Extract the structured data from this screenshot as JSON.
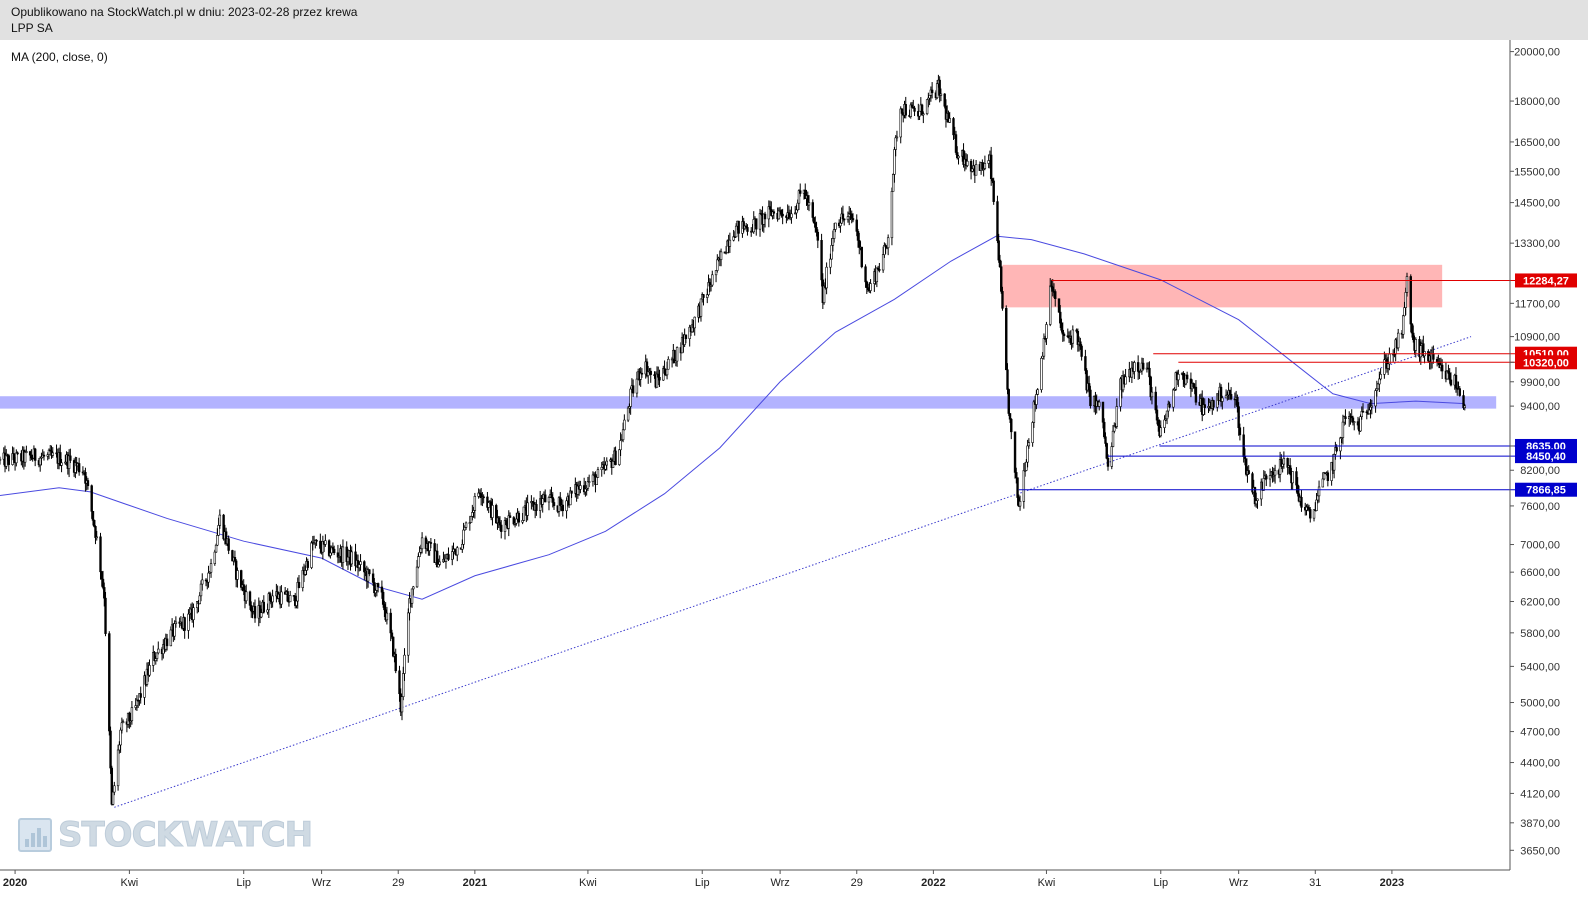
{
  "header": {
    "line1": "Opublikowano na StockWatch.pl w dniu: 2023-02-28 przez krewa",
    "line2": "LPP SA"
  },
  "indicator": {
    "label": "MA (200, close, 0)"
  },
  "watermark": {
    "text": "STOCKWATCH",
    "icon": "bar-chart-logo-icon"
  },
  "colors": {
    "candle": "#000000",
    "ma": "#4a4ae0",
    "support_band": "#b3b3ff",
    "resistance_band": "#ffb6b6",
    "red_level": "#e00000",
    "blue_level": "#0000cc",
    "trendline": "#3a3acc"
  },
  "chart_data": {
    "type": "candlestick",
    "title": "LPP SA",
    "y_scale": "log",
    "ylim": [
      3500,
      20500
    ],
    "y_ticks": [
      20000,
      18000,
      16500,
      15500,
      14500,
      13300,
      11700,
      10900,
      10320,
      9900,
      9400,
      8635,
      8200,
      7600,
      7000,
      6600,
      6200,
      5800,
      5400,
      5000,
      4700,
      4400,
      4120,
      3870,
      3650
    ],
    "y_tick_labels": [
      "20000,00",
      "18000,00",
      "16500,00",
      "15500,00",
      "14500,00",
      "13300,00",
      "11700,00",
      "10900,00",
      "",
      "9900,00",
      "9400,00",
      "",
      "8200,00",
      "7600,00",
      "7000,00",
      "6600,00",
      "6200,00",
      "5800,00",
      "5400,00",
      "5000,00",
      "4700,00",
      "4400,00",
      "4120,00",
      "3870,00",
      "3650,00"
    ],
    "x_ticks": [
      {
        "date": "2020-01-01",
        "label": "2020",
        "bold": true
      },
      {
        "date": "2020-04-01",
        "label": "Kwi"
      },
      {
        "date": "2020-07-01",
        "label": "Lip"
      },
      {
        "date": "2020-09-01",
        "label": "Wrz"
      },
      {
        "date": "2020-11-01",
        "label": "29"
      },
      {
        "date": "2021-01-01",
        "label": "2021",
        "bold": true
      },
      {
        "date": "2021-04-01",
        "label": "Kwi"
      },
      {
        "date": "2021-07-01",
        "label": "Lip"
      },
      {
        "date": "2021-09-01",
        "label": "Wrz"
      },
      {
        "date": "2021-11-01",
        "label": "29"
      },
      {
        "date": "2022-01-01",
        "label": "2022",
        "bold": true
      },
      {
        "date": "2022-04-01",
        "label": "Kwi"
      },
      {
        "date": "2022-07-01",
        "label": "Lip"
      },
      {
        "date": "2022-09-01",
        "label": "Wrz"
      },
      {
        "date": "2022-11-01",
        "label": "31"
      },
      {
        "date": "2023-01-01",
        "label": "2023",
        "bold": true
      }
    ],
    "x_range": [
      "2019-12-20",
      "2023-04-05"
    ],
    "price_path": [
      [
        "2019-12-20",
        8350
      ],
      [
        "2020-01-15",
        8450
      ],
      [
        "2020-02-10",
        8400
      ],
      [
        "2020-02-25",
        8200
      ],
      [
        "2020-03-05",
        7200
      ],
      [
        "2020-03-12",
        6300
      ],
      [
        "2020-03-18",
        4000
      ],
      [
        "2020-03-25",
        4700
      ],
      [
        "2020-04-05",
        4900
      ],
      [
        "2020-04-20",
        5500
      ],
      [
        "2020-05-05",
        5800
      ],
      [
        "2020-05-20",
        6000
      ],
      [
        "2020-06-05",
        6700
      ],
      [
        "2020-06-12",
        7400
      ],
      [
        "2020-06-25",
        6600
      ],
      [
        "2020-07-10",
        6000
      ],
      [
        "2020-07-25",
        6300
      ],
      [
        "2020-08-10",
        6200
      ],
      [
        "2020-08-25",
        7000
      ],
      [
        "2020-09-10",
        6900
      ],
      [
        "2020-09-25",
        6800
      ],
      [
        "2020-10-10",
        6500
      ],
      [
        "2020-10-20",
        6200
      ],
      [
        "2020-10-28",
        5600
      ],
      [
        "2020-11-03",
        4950
      ],
      [
        "2020-11-10",
        6200
      ],
      [
        "2020-11-20",
        7100
      ],
      [
        "2020-12-05",
        6700
      ],
      [
        "2020-12-20",
        7000
      ],
      [
        "2021-01-05",
        7900
      ],
      [
        "2021-01-20",
        7300
      ],
      [
        "2021-02-10",
        7500
      ],
      [
        "2021-02-25",
        7700
      ],
      [
        "2021-03-10",
        7600
      ],
      [
        "2021-03-25",
        7900
      ],
      [
        "2021-04-10",
        8100
      ],
      [
        "2021-04-25",
        8500
      ],
      [
        "2021-05-05",
        9600
      ],
      [
        "2021-05-15",
        10300
      ],
      [
        "2021-05-25",
        9900
      ],
      [
        "2021-06-10",
        10500
      ],
      [
        "2021-06-25",
        11300
      ],
      [
        "2021-07-10",
        12400
      ],
      [
        "2021-07-25",
        13700
      ],
      [
        "2021-08-10",
        13800
      ],
      [
        "2021-08-25",
        14200
      ],
      [
        "2021-09-10",
        14200
      ],
      [
        "2021-09-20",
        14900
      ],
      [
        "2021-10-01",
        13400
      ],
      [
        "2021-10-05",
        11800
      ],
      [
        "2021-10-15",
        14000
      ],
      [
        "2021-10-30",
        14000
      ],
      [
        "2021-11-10",
        12000
      ],
      [
        "2021-11-25",
        13200
      ],
      [
        "2021-12-01",
        16000
      ],
      [
        "2021-12-05",
        17800
      ],
      [
        "2021-12-20",
        17500
      ],
      [
        "2022-01-05",
        18500
      ],
      [
        "2022-01-20",
        16200
      ],
      [
        "2022-02-05",
        15500
      ],
      [
        "2022-02-15",
        15800
      ],
      [
        "2022-02-22",
        13000
      ],
      [
        "2022-02-28",
        10000
      ],
      [
        "2022-03-05",
        8500
      ],
      [
        "2022-03-10",
        7600
      ],
      [
        "2022-03-18",
        8800
      ],
      [
        "2022-03-25",
        9800
      ],
      [
        "2022-04-05",
        12200
      ],
      [
        "2022-04-15",
        10800
      ],
      [
        "2022-04-25",
        11000
      ],
      [
        "2022-05-05",
        9600
      ],
      [
        "2022-05-15",
        9300
      ],
      [
        "2022-05-20",
        8200
      ],
      [
        "2022-05-30",
        9800
      ],
      [
        "2022-06-10",
        10300
      ],
      [
        "2022-06-20",
        10200
      ],
      [
        "2022-06-30",
        8800
      ],
      [
        "2022-07-10",
        9600
      ],
      [
        "2022-07-15",
        10200
      ],
      [
        "2022-07-25",
        9800
      ],
      [
        "2022-08-05",
        9300
      ],
      [
        "2022-08-20",
        9700
      ],
      [
        "2022-08-30",
        9500
      ],
      [
        "2022-09-05",
        8400
      ],
      [
        "2022-09-15",
        7700
      ],
      [
        "2022-09-25",
        8200
      ],
      [
        "2022-10-10",
        8300
      ],
      [
        "2022-10-20",
        7700
      ],
      [
        "2022-10-28",
        7400
      ],
      [
        "2022-11-05",
        7900
      ],
      [
        "2022-11-15",
        8300
      ],
      [
        "2022-11-25",
        9200
      ],
      [
        "2022-12-05",
        9000
      ],
      [
        "2022-12-15",
        9500
      ],
      [
        "2022-12-25",
        10200
      ],
      [
        "2023-01-05",
        10700
      ],
      [
        "2023-01-10",
        11200
      ],
      [
        "2023-01-13",
        12250
      ],
      [
        "2023-01-18",
        10700
      ],
      [
        "2023-01-28",
        10500
      ],
      [
        "2023-02-10",
        10100
      ],
      [
        "2023-02-20",
        9900
      ],
      [
        "2023-02-28",
        9450
      ]
    ],
    "ma200_path": [
      [
        "2019-12-20",
        7770
      ],
      [
        "2020-02-05",
        7900
      ],
      [
        "2020-03-01",
        7830
      ],
      [
        "2020-05-01",
        7400
      ],
      [
        "2020-07-01",
        7050
      ],
      [
        "2020-09-01",
        6800
      ],
      [
        "2020-10-15",
        6400
      ],
      [
        "2020-11-20",
        6230
      ],
      [
        "2021-01-01",
        6550
      ],
      [
        "2021-03-01",
        6850
      ],
      [
        "2021-04-15",
        7200
      ],
      [
        "2021-06-01",
        7800
      ],
      [
        "2021-07-15",
        8600
      ],
      [
        "2021-09-01",
        9900
      ],
      [
        "2021-10-15",
        11000
      ],
      [
        "2021-12-01",
        11800
      ],
      [
        "2022-01-15",
        12800
      ],
      [
        "2022-02-20",
        13500
      ],
      [
        "2022-03-20",
        13400
      ],
      [
        "2022-05-01",
        13000
      ],
      [
        "2022-07-01",
        12300
      ],
      [
        "2022-09-01",
        11300
      ],
      [
        "2022-10-15",
        10300
      ],
      [
        "2022-11-15",
        9650
      ],
      [
        "2022-12-15",
        9450
      ],
      [
        "2023-01-20",
        9500
      ],
      [
        "2023-02-28",
        9450
      ]
    ],
    "trendline": {
      "from": [
        "2020-03-20",
        4000
      ],
      "to": [
        "2023-03-05",
        10900
      ],
      "style": "dotted"
    },
    "zones": [
      {
        "name": "resistance-zone",
        "from_date": "2022-02-25",
        "to_date": "2023-02-10",
        "low": 11600,
        "high": 12700,
        "color": "#ffb6b6"
      },
      {
        "name": "support-band",
        "from_date": "2019-12-20",
        "to_date": "2023-03-25",
        "low": 9350,
        "high": 9600,
        "color": "#b3b3ff"
      }
    ],
    "levels": [
      {
        "value": 12284.27,
        "label": "12284,27",
        "color": "red",
        "from_date": "2022-04-05"
      },
      {
        "value": 10510.0,
        "label": "10510,00",
        "color": "red",
        "from_date": "2022-06-25"
      },
      {
        "value": 10320.0,
        "label": "10320,00",
        "color": "red",
        "from_date": "2022-07-15"
      },
      {
        "value": 8635.0,
        "label": "8635,00",
        "color": "blue",
        "from_date": "2022-06-30"
      },
      {
        "value": 8450.4,
        "label": "8450,40",
        "color": "blue",
        "from_date": "2022-05-20"
      },
      {
        "value": 7866.85,
        "label": "7866,85",
        "color": "blue",
        "from_date": "2022-03-10"
      }
    ]
  }
}
